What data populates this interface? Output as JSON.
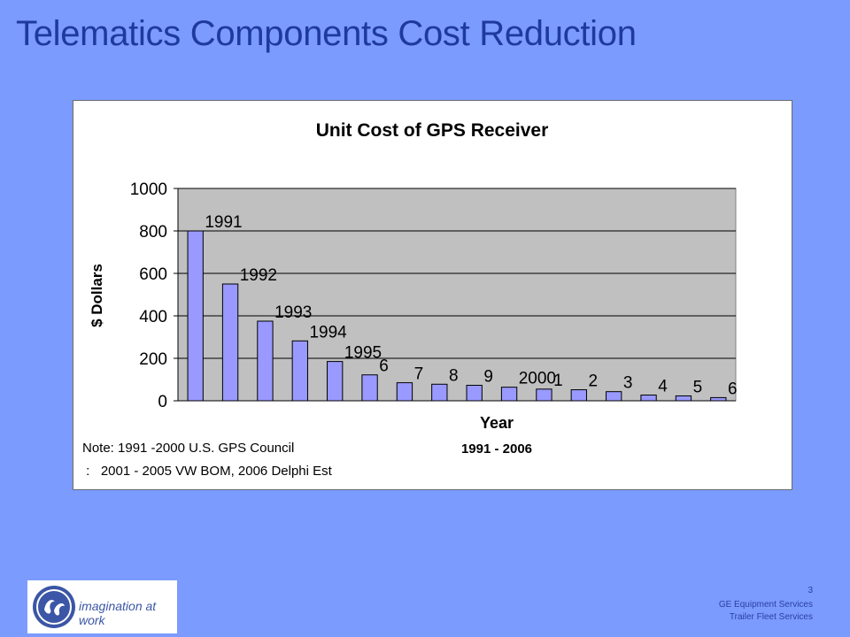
{
  "slide": {
    "title": "Telematics Components Cost Reduction",
    "page_number": "3",
    "footer_line1": "GE Equipment Services",
    "footer_line2": "Trailer Fleet Services",
    "logo_tagline": "imagination at work"
  },
  "colors": {
    "background": "#7b9bff",
    "title": "#1f3a9e",
    "plot_area": "#c0c0c0",
    "bar_fill": "#9999ff",
    "bar_stroke": "#000000"
  },
  "chart_data": {
    "type": "bar",
    "title": "Unit Cost of GPS Receiver",
    "xlabel": "Year",
    "x_sublabel": "1991 - 2006",
    "ylabel": "$ Dollars",
    "ylim": [
      0,
      1000
    ],
    "yticks": [
      0,
      200,
      400,
      600,
      800,
      1000
    ],
    "grid": true,
    "legend": "none",
    "categories": [
      "1991",
      "1992",
      "1993",
      "1994",
      "1995",
      "1996",
      "1997",
      "1998",
      "1999",
      "2000",
      "2001",
      "2002",
      "2003",
      "2004",
      "2005",
      "2006"
    ],
    "point_labels": [
      "1991",
      "1992",
      "1993",
      "1994",
      "1995",
      "6",
      "7",
      "8",
      "9",
      "2000",
      "1",
      "2",
      "3",
      "4",
      "5",
      "6"
    ],
    "values": [
      800,
      550,
      375,
      282,
      185,
      122,
      85,
      78,
      73,
      64,
      55,
      52,
      43,
      27,
      23,
      15
    ],
    "notes": [
      "Note: 1991 -2000 U.S. GPS Council",
      " :   2001 - 2005 VW BOM, 2006 Delphi Est"
    ]
  }
}
